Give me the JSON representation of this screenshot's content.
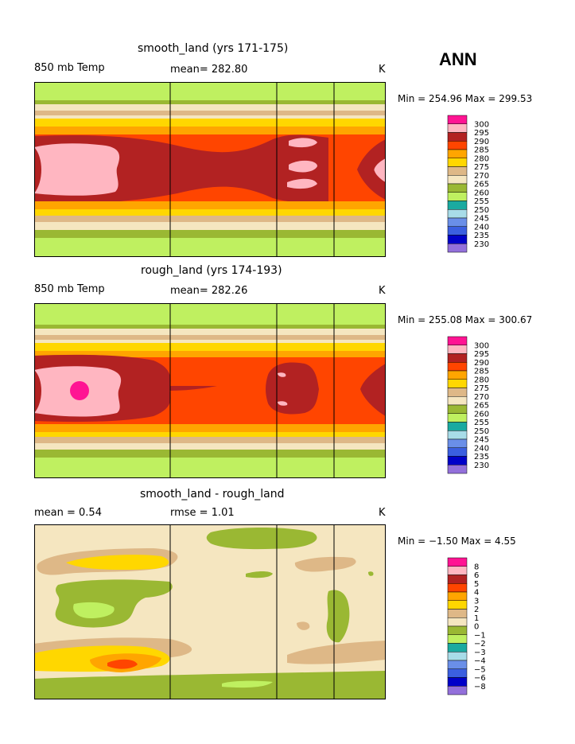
{
  "season": "ANN",
  "panels": [
    {
      "title": "smooth_land (yrs 171-175)",
      "left_label": "850 mb Temp",
      "center_label": "mean= 282.80",
      "right_label": "K",
      "minmax": "Min = 254.96 Max = 299.53",
      "colorbar_ticks": [
        "300",
        "295",
        "290",
        "285",
        "280",
        "275",
        "270",
        "265",
        "260",
        "255",
        "250",
        "245",
        "240",
        "235",
        "230"
      ]
    },
    {
      "title": "rough_land (yrs 174-193)",
      "left_label": "850 mb Temp",
      "center_label": "mean= 282.26",
      "right_label": "K",
      "minmax": "Min = 255.08 Max = 300.67",
      "colorbar_ticks": [
        "300",
        "295",
        "290",
        "285",
        "280",
        "275",
        "270",
        "265",
        "260",
        "255",
        "250",
        "245",
        "240",
        "235",
        "230"
      ]
    },
    {
      "title": "smooth_land - rough_land",
      "left_label": "mean =    0.54",
      "center_label": "rmse =    1.01",
      "right_label": "K",
      "minmax": "Min =  −1.50 Max =    4.55",
      "colorbar_ticks": [
        "8",
        "6",
        "5",
        "4",
        "3",
        "2",
        "1",
        "0",
        "−1",
        "−2",
        "−3",
        "−4",
        "−5",
        "−6",
        "−8"
      ]
    }
  ],
  "chart_data": [
    {
      "type": "heatmap",
      "title": "smooth_land (yrs 171-175)",
      "variable": "850 mb Temp",
      "units": "K",
      "mean": 282.8,
      "min": 254.96,
      "max": 299.53,
      "contour_levels": [
        230,
        235,
        240,
        245,
        250,
        255,
        260,
        265,
        270,
        275,
        280,
        285,
        290,
        295,
        300
      ]
    },
    {
      "type": "heatmap",
      "title": "rough_land (yrs 174-193)",
      "variable": "850 mb Temp",
      "units": "K",
      "mean": 282.26,
      "min": 255.08,
      "max": 300.67,
      "contour_levels": [
        230,
        235,
        240,
        245,
        250,
        255,
        260,
        265,
        270,
        275,
        280,
        285,
        290,
        295,
        300
      ]
    },
    {
      "type": "heatmap",
      "title": "smooth_land - rough_land",
      "units": "K",
      "mean": 0.54,
      "rmse": 1.01,
      "min": -1.5,
      "max": 4.55,
      "contour_levels": [
        -8,
        -6,
        -5,
        -4,
        -3,
        -2,
        -1,
        0,
        1,
        2,
        3,
        4,
        5,
        6,
        8
      ]
    }
  ],
  "colors": {
    "temp_scale": [
      "#ff1493",
      "#ffb6c1",
      "#b22222",
      "#ff4500",
      "#ffa500",
      "#ffd700",
      "#deb887",
      "#f5deb3",
      "#9acd32",
      "#c0f060",
      "#20b2aa",
      "#add8e6",
      "#6495ed",
      "#4169e1",
      "#0000cd",
      "#9370db"
    ],
    "temp_colorbar": [
      "#ff1493",
      "#ffb6c1",
      "#b22222",
      "#ff4500",
      "#ffa500",
      "#ffd700",
      "#deb887",
      "#f5e6c0",
      "#9ab833",
      "#bff060",
      "#1aaaa0",
      "#a8dce8",
      "#6a8fe8",
      "#3b5fe0",
      "#0000c8",
      "#9370db"
    ],
    "diff_colorbar": [
      "#ff1493",
      "#ffb6c1",
      "#b22222",
      "#ff4500",
      "#ffa500",
      "#ffd700",
      "#deb887",
      "#f5e6c0",
      "#9ab833",
      "#bff060",
      "#1aaaa0",
      "#a8dce8",
      "#6a8fe8",
      "#3b5fe0",
      "#0000c8",
      "#9370db"
    ]
  }
}
